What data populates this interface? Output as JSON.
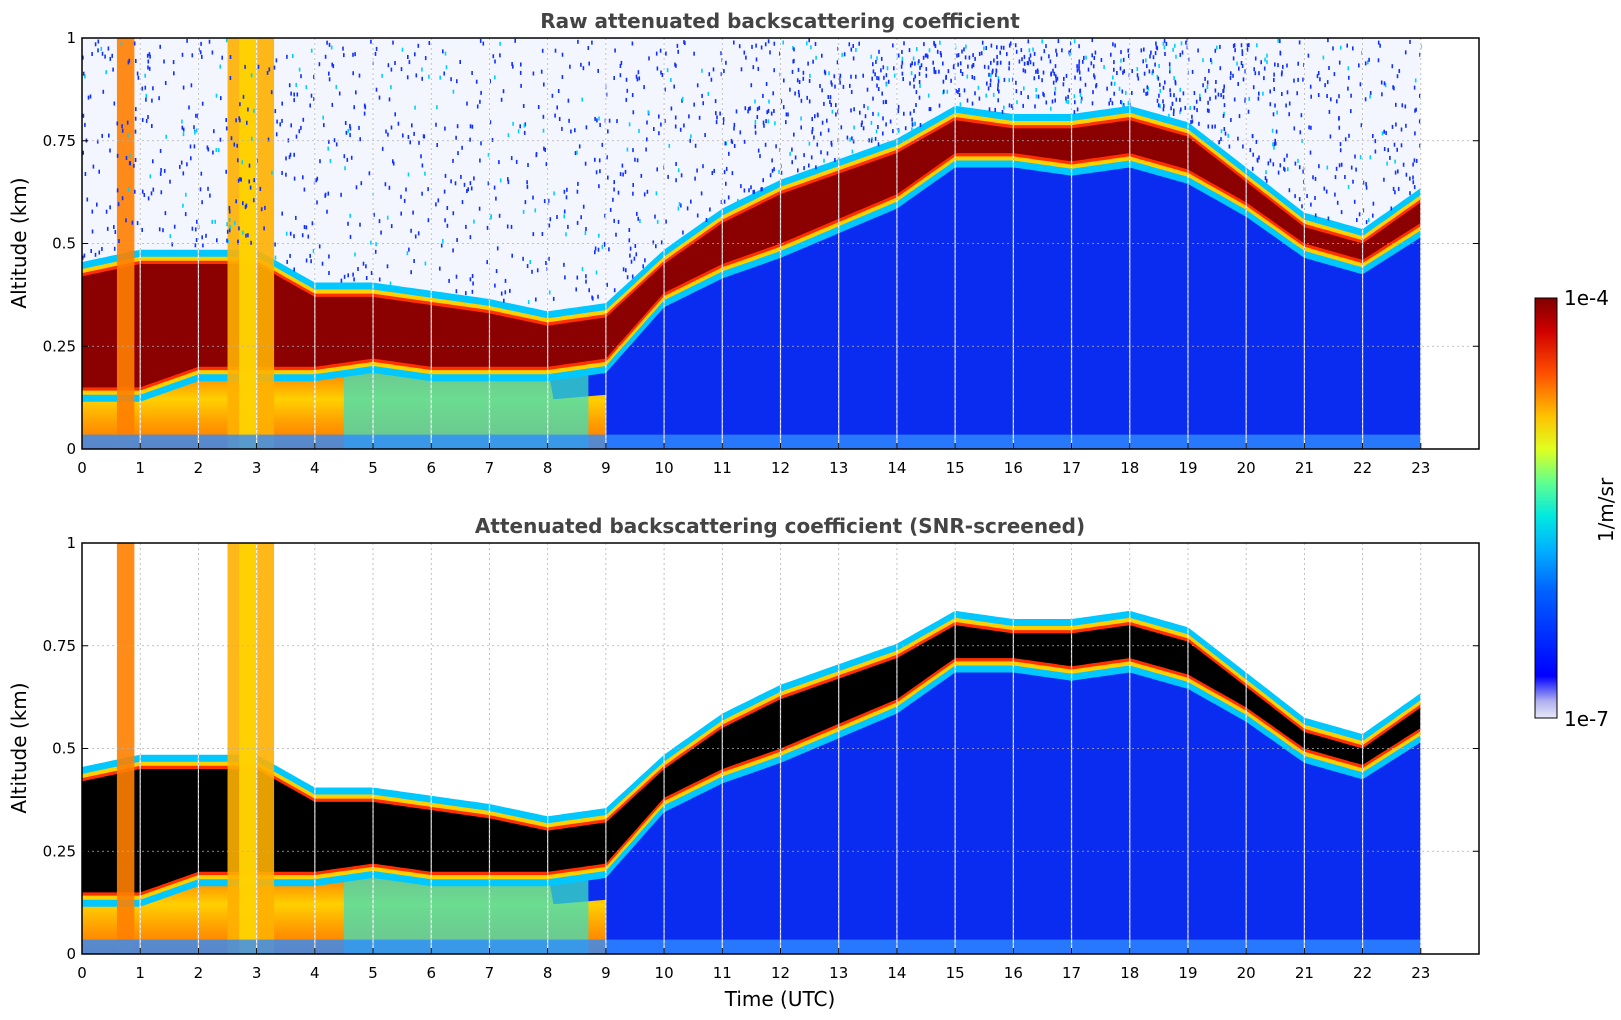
{
  "chart_data": [
    {
      "type": "heatmap",
      "title": "Raw attenuated backscattering coefficient",
      "xlabel": "",
      "ylabel": "Altitude (km)",
      "xlim": [
        0,
        24
      ],
      "ylim": [
        0,
        1
      ],
      "x_ticks": [
        0,
        1,
        2,
        3,
        4,
        5,
        6,
        7,
        8,
        9,
        10,
        11,
        12,
        13,
        14,
        15,
        16,
        17,
        18,
        19,
        20,
        21,
        22,
        23
      ],
      "y_ticks": [
        "0",
        "0.25",
        "0.5",
        "0.75",
        "1"
      ],
      "y_tick_values": [
        0,
        0.25,
        0.5,
        0.75,
        1
      ],
      "grid": true,
      "data_end_time": 23,
      "boundary_layer_top_km": [
        [
          0,
          0.42
        ],
        [
          1,
          0.45
        ],
        [
          2,
          0.45
        ],
        [
          3,
          0.45
        ],
        [
          4,
          0.37
        ],
        [
          5,
          0.37
        ],
        [
          6,
          0.35
        ],
        [
          7,
          0.33
        ],
        [
          8,
          0.3
        ],
        [
          9,
          0.32
        ],
        [
          10,
          0.45
        ],
        [
          11,
          0.55
        ],
        [
          12,
          0.62
        ],
        [
          13,
          0.67
        ],
        [
          14,
          0.72
        ],
        [
          15,
          0.8
        ],
        [
          16,
          0.78
        ],
        [
          17,
          0.78
        ],
        [
          18,
          0.8
        ],
        [
          19,
          0.76
        ],
        [
          20,
          0.65
        ],
        [
          21,
          0.54
        ],
        [
          22,
          0.5
        ],
        [
          23,
          0.6
        ]
      ],
      "boundary_layer_base_km": [
        [
          0,
          0.15
        ],
        [
          1,
          0.15
        ],
        [
          2,
          0.2
        ],
        [
          3,
          0.2
        ],
        [
          4,
          0.2
        ],
        [
          5,
          0.22
        ],
        [
          6,
          0.2
        ],
        [
          7,
          0.2
        ],
        [
          8,
          0.2
        ],
        [
          9,
          0.22
        ],
        [
          10,
          0.38
        ],
        [
          11,
          0.45
        ],
        [
          12,
          0.5
        ],
        [
          13,
          0.56
        ],
        [
          14,
          0.62
        ],
        [
          15,
          0.72
        ],
        [
          16,
          0.72
        ],
        [
          17,
          0.7
        ],
        [
          18,
          0.72
        ],
        [
          19,
          0.68
        ],
        [
          20,
          0.6
        ],
        [
          21,
          0.5
        ],
        [
          22,
          0.46
        ],
        [
          23,
          0.55
        ]
      ]
    },
    {
      "type": "heatmap",
      "title": "Attenuated backscattering coefficient (SNR-screened)",
      "xlabel": "Time (UTC)",
      "ylabel": "Altitude (km)",
      "xlim": [
        0,
        24
      ],
      "ylim": [
        0,
        1
      ],
      "x_ticks": [
        0,
        1,
        2,
        3,
        4,
        5,
        6,
        7,
        8,
        9,
        10,
        11,
        12,
        13,
        14,
        15,
        16,
        17,
        18,
        19,
        20,
        21,
        22,
        23
      ],
      "y_ticks": [
        "0",
        "0.25",
        "0.5",
        "0.75",
        "1"
      ],
      "y_tick_values": [
        0,
        0.25,
        0.5,
        0.75,
        1
      ],
      "grid": true,
      "data_end_time": 23,
      "saturated_color": "#000000",
      "boundary_layer_top_km": [
        [
          0,
          0.42
        ],
        [
          1,
          0.45
        ],
        [
          2,
          0.45
        ],
        [
          3,
          0.45
        ],
        [
          4,
          0.37
        ],
        [
          5,
          0.37
        ],
        [
          6,
          0.35
        ],
        [
          7,
          0.33
        ],
        [
          8,
          0.3
        ],
        [
          9,
          0.32
        ],
        [
          10,
          0.45
        ],
        [
          11,
          0.55
        ],
        [
          12,
          0.62
        ],
        [
          13,
          0.67
        ],
        [
          14,
          0.72
        ],
        [
          15,
          0.8
        ],
        [
          16,
          0.78
        ],
        [
          17,
          0.78
        ],
        [
          18,
          0.8
        ],
        [
          19,
          0.76
        ],
        [
          20,
          0.65
        ],
        [
          21,
          0.54
        ],
        [
          22,
          0.5
        ],
        [
          23,
          0.6
        ]
      ],
      "boundary_layer_base_km": [
        [
          0,
          0.15
        ],
        [
          1,
          0.15
        ],
        [
          2,
          0.2
        ],
        [
          3,
          0.2
        ],
        [
          4,
          0.2
        ],
        [
          5,
          0.22
        ],
        [
          6,
          0.2
        ],
        [
          7,
          0.2
        ],
        [
          8,
          0.2
        ],
        [
          9,
          0.22
        ],
        [
          10,
          0.38
        ],
        [
          11,
          0.45
        ],
        [
          12,
          0.5
        ],
        [
          13,
          0.56
        ],
        [
          14,
          0.62
        ],
        [
          15,
          0.72
        ],
        [
          16,
          0.72
        ],
        [
          17,
          0.7
        ],
        [
          18,
          0.72
        ],
        [
          19,
          0.68
        ],
        [
          20,
          0.6
        ],
        [
          21,
          0.5
        ],
        [
          22,
          0.46
        ],
        [
          23,
          0.55
        ]
      ]
    }
  ],
  "colorbar": {
    "max_label": "1e-4",
    "min_label": "1e-7",
    "unit_label": "1/m/sr",
    "colormap": "jet"
  }
}
